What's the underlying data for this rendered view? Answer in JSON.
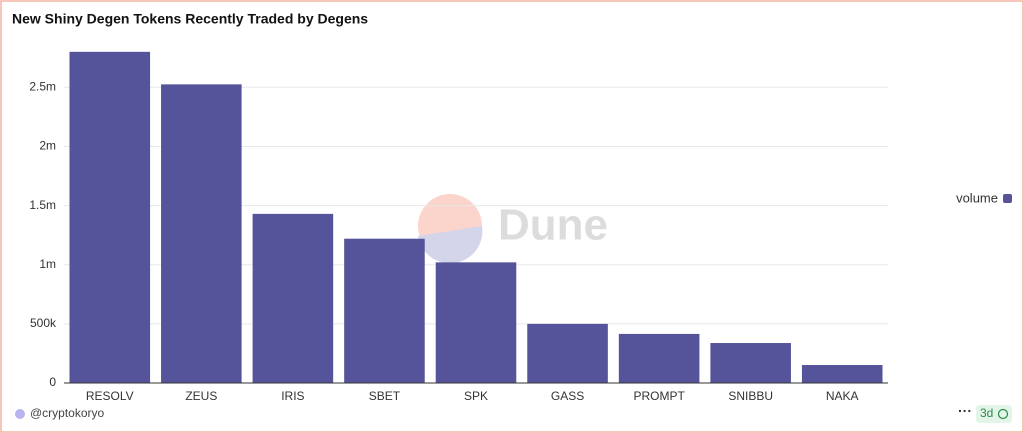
{
  "chart_data": {
    "type": "bar",
    "title": "New Shiny Degen Tokens Recently Traded by Degens",
    "categories": [
      "RESOLV",
      "ZEUS",
      "IRIS",
      "SBET",
      "SPK",
      "GASS",
      "PROMPT",
      "SNIBBU",
      "NAKA"
    ],
    "series": [
      {
        "name": "volume",
        "color": "#55549a",
        "values": [
          2800000,
          2525000,
          1430000,
          1220000,
          1020000,
          500000,
          415000,
          338000,
          152000
        ]
      }
    ],
    "ylim": [
      0,
      2900000
    ],
    "yticks": [
      0,
      {
        "value": 500000,
        "label": "500k"
      },
      {
        "value": 1000000,
        "label": "1m"
      },
      {
        "value": 1500000,
        "label": "1.5m"
      },
      {
        "value": 2000000,
        "label": "2m"
      },
      {
        "value": 2500000,
        "label": "2.5m"
      }
    ],
    "grid": true,
    "legend": "right",
    "watermark": "Dune"
  },
  "footer": {
    "author": "@cryptokoryo",
    "refresh": "3d"
  }
}
